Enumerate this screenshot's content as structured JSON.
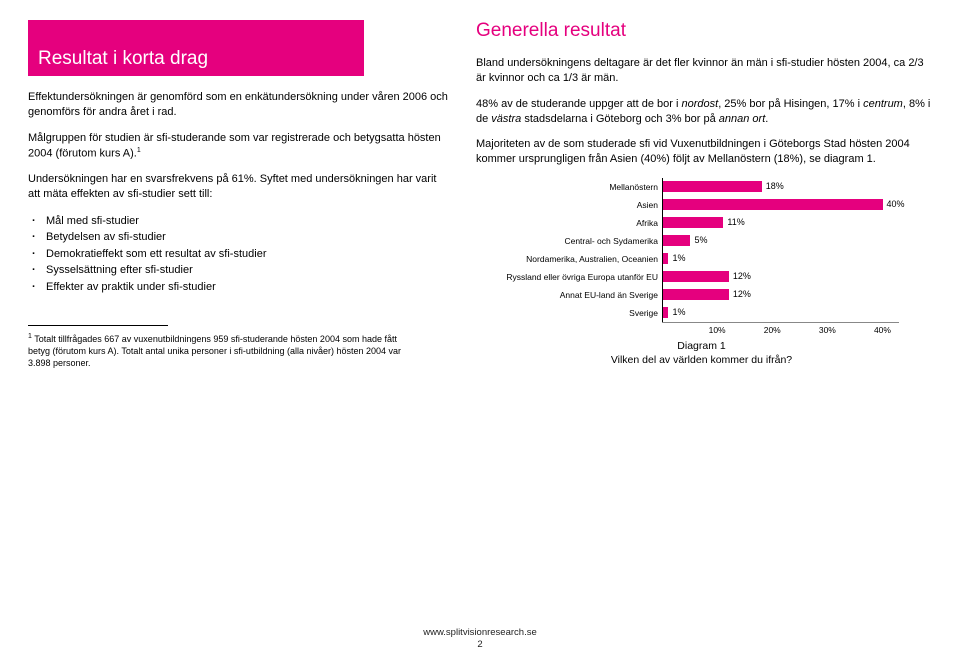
{
  "colors": {
    "magenta": "#e5007e",
    "section_title": "#e5007e",
    "text": "#000000",
    "background": "#ffffff",
    "axis": "#888888"
  },
  "left": {
    "block_title": "Resultat i korta drag",
    "p1": "Effektundersökningen är genomförd som en enkätundersökning under våren 2006 och genomförs för andra året i rad.",
    "p2_a": "Målgruppen för studien är sfi-studerande som var registrerade och betygsatta hösten 2004 (förutom kurs A).",
    "p2_sup": "1",
    "p3": "Undersökningen har en svarsfrekvens på 61%. Syftet med undersökningen har varit att mäta effekten av sfi-studier sett till:",
    "bullets": [
      "Mål med sfi-studier",
      "Betydelsen av sfi-studier",
      "Demokratieffekt som ett resultat av sfi-studier",
      "Sysselsättning efter sfi-studier",
      "Effekter av praktik under sfi-studier"
    ]
  },
  "right": {
    "title": "Generella resultat",
    "p1": "Bland undersökningens deltagare är det fler kvinnor än män i sfi-studier hösten 2004, ca 2/3 är kvinnor och ca 1/3 är män.",
    "p2_a": "48% av de studerande uppger att de bor i ",
    "p2_i1": "nordost",
    "p2_b": ", 25% bor på Hisingen, 17% i ",
    "p2_i2": "centrum",
    "p2_c": ", 8% i de ",
    "p2_i3": "västra",
    "p2_d": " stadsdelarna i Göteborg och 3% bor på ",
    "p2_i4": "annan ort",
    "p2_e": ".",
    "p3": "Majoriteten av de som studerade sfi vid Vuxenutbildningen i Göteborgs Stad hösten 2004 kommer ursprungligen från Asien (40%) följt av Mellanöstern (18%), se diagram 1."
  },
  "chart": {
    "type": "bar-horizontal",
    "bar_color": "#e5007e",
    "max_pct": 43,
    "categories": [
      {
        "label": "Mellanöstern",
        "value": 18,
        "display": "18%"
      },
      {
        "label": "Asien",
        "value": 40,
        "display": "40%"
      },
      {
        "label": "Afrika",
        "value": 11,
        "display": "11%"
      },
      {
        "label": "Central- och Sydamerika",
        "value": 5,
        "display": "5%"
      },
      {
        "label": "Nordamerika, Australien, Oceanien",
        "value": 1,
        "display": "1%"
      },
      {
        "label": "Ryssland eller övriga Europa utanför EU",
        "value": 12,
        "display": "12%"
      },
      {
        "label": "Annat EU-land än Sverige",
        "value": 12,
        "display": "12%"
      },
      {
        "label": "Sverige",
        "value": 1,
        "display": "1%"
      }
    ],
    "axis_ticks": [
      {
        "pct": 10,
        "label": "10%"
      },
      {
        "pct": 20,
        "label": "20%"
      },
      {
        "pct": 30,
        "label": "30%"
      },
      {
        "pct": 40,
        "label": "40%"
      }
    ],
    "caption_line1": "Diagram 1",
    "caption_line2": "Vilken del av världen kommer du ifrån?"
  },
  "footnote": {
    "marker": "1",
    "text": " Totalt tillfrågades 667 av vuxenutbildningens 959 sfi-studerande hösten 2004 som hade fått betyg (förutom kurs A). Totalt antal unika personer i sfi-utbildning (alla nivåer) hösten 2004 var 3.898 personer."
  },
  "footer": {
    "url": "www.splitvisionresearch.se",
    "page": "2"
  }
}
